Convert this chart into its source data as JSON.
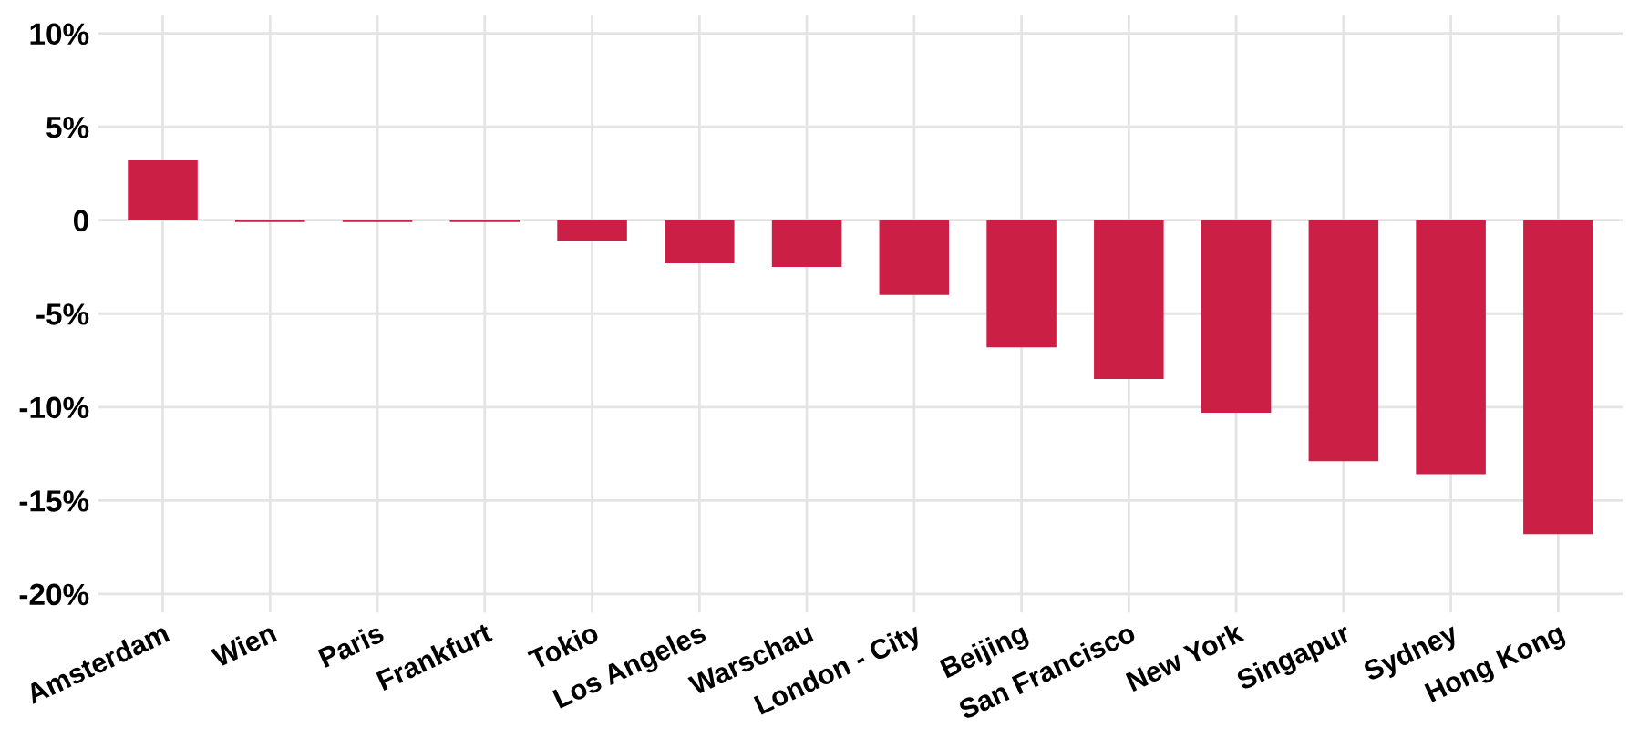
{
  "chart_data": {
    "type": "bar",
    "categories": [
      "Amsterdam",
      "Wien",
      "Paris",
      "Frankfurt",
      "Tokio",
      "Los Angeles",
      "Warschau",
      "London - City",
      "Beijing",
      "San Francisco",
      "New York",
      "Singapur",
      "Sydney",
      "Hong Kong"
    ],
    "values": [
      3.2,
      -0.1,
      -0.1,
      -0.1,
      -1.1,
      -2.3,
      -2.5,
      -4.0,
      -6.8,
      -8.5,
      -10.3,
      -12.9,
      -13.6,
      -16.8
    ],
    "color": "#cc1f45",
    "ylim": [
      -21,
      11
    ],
    "yticks": [
      {
        "value": 10,
        "label": "10%"
      },
      {
        "value": 5,
        "label": "5%"
      },
      0,
      {
        "value": -5,
        "label": "-5%"
      },
      {
        "value": -10,
        "label": "-10%"
      },
      {
        "value": -15,
        "label": "-15%"
      },
      {
        "value": -20,
        "label": "-20%"
      }
    ],
    "grid": true
  }
}
